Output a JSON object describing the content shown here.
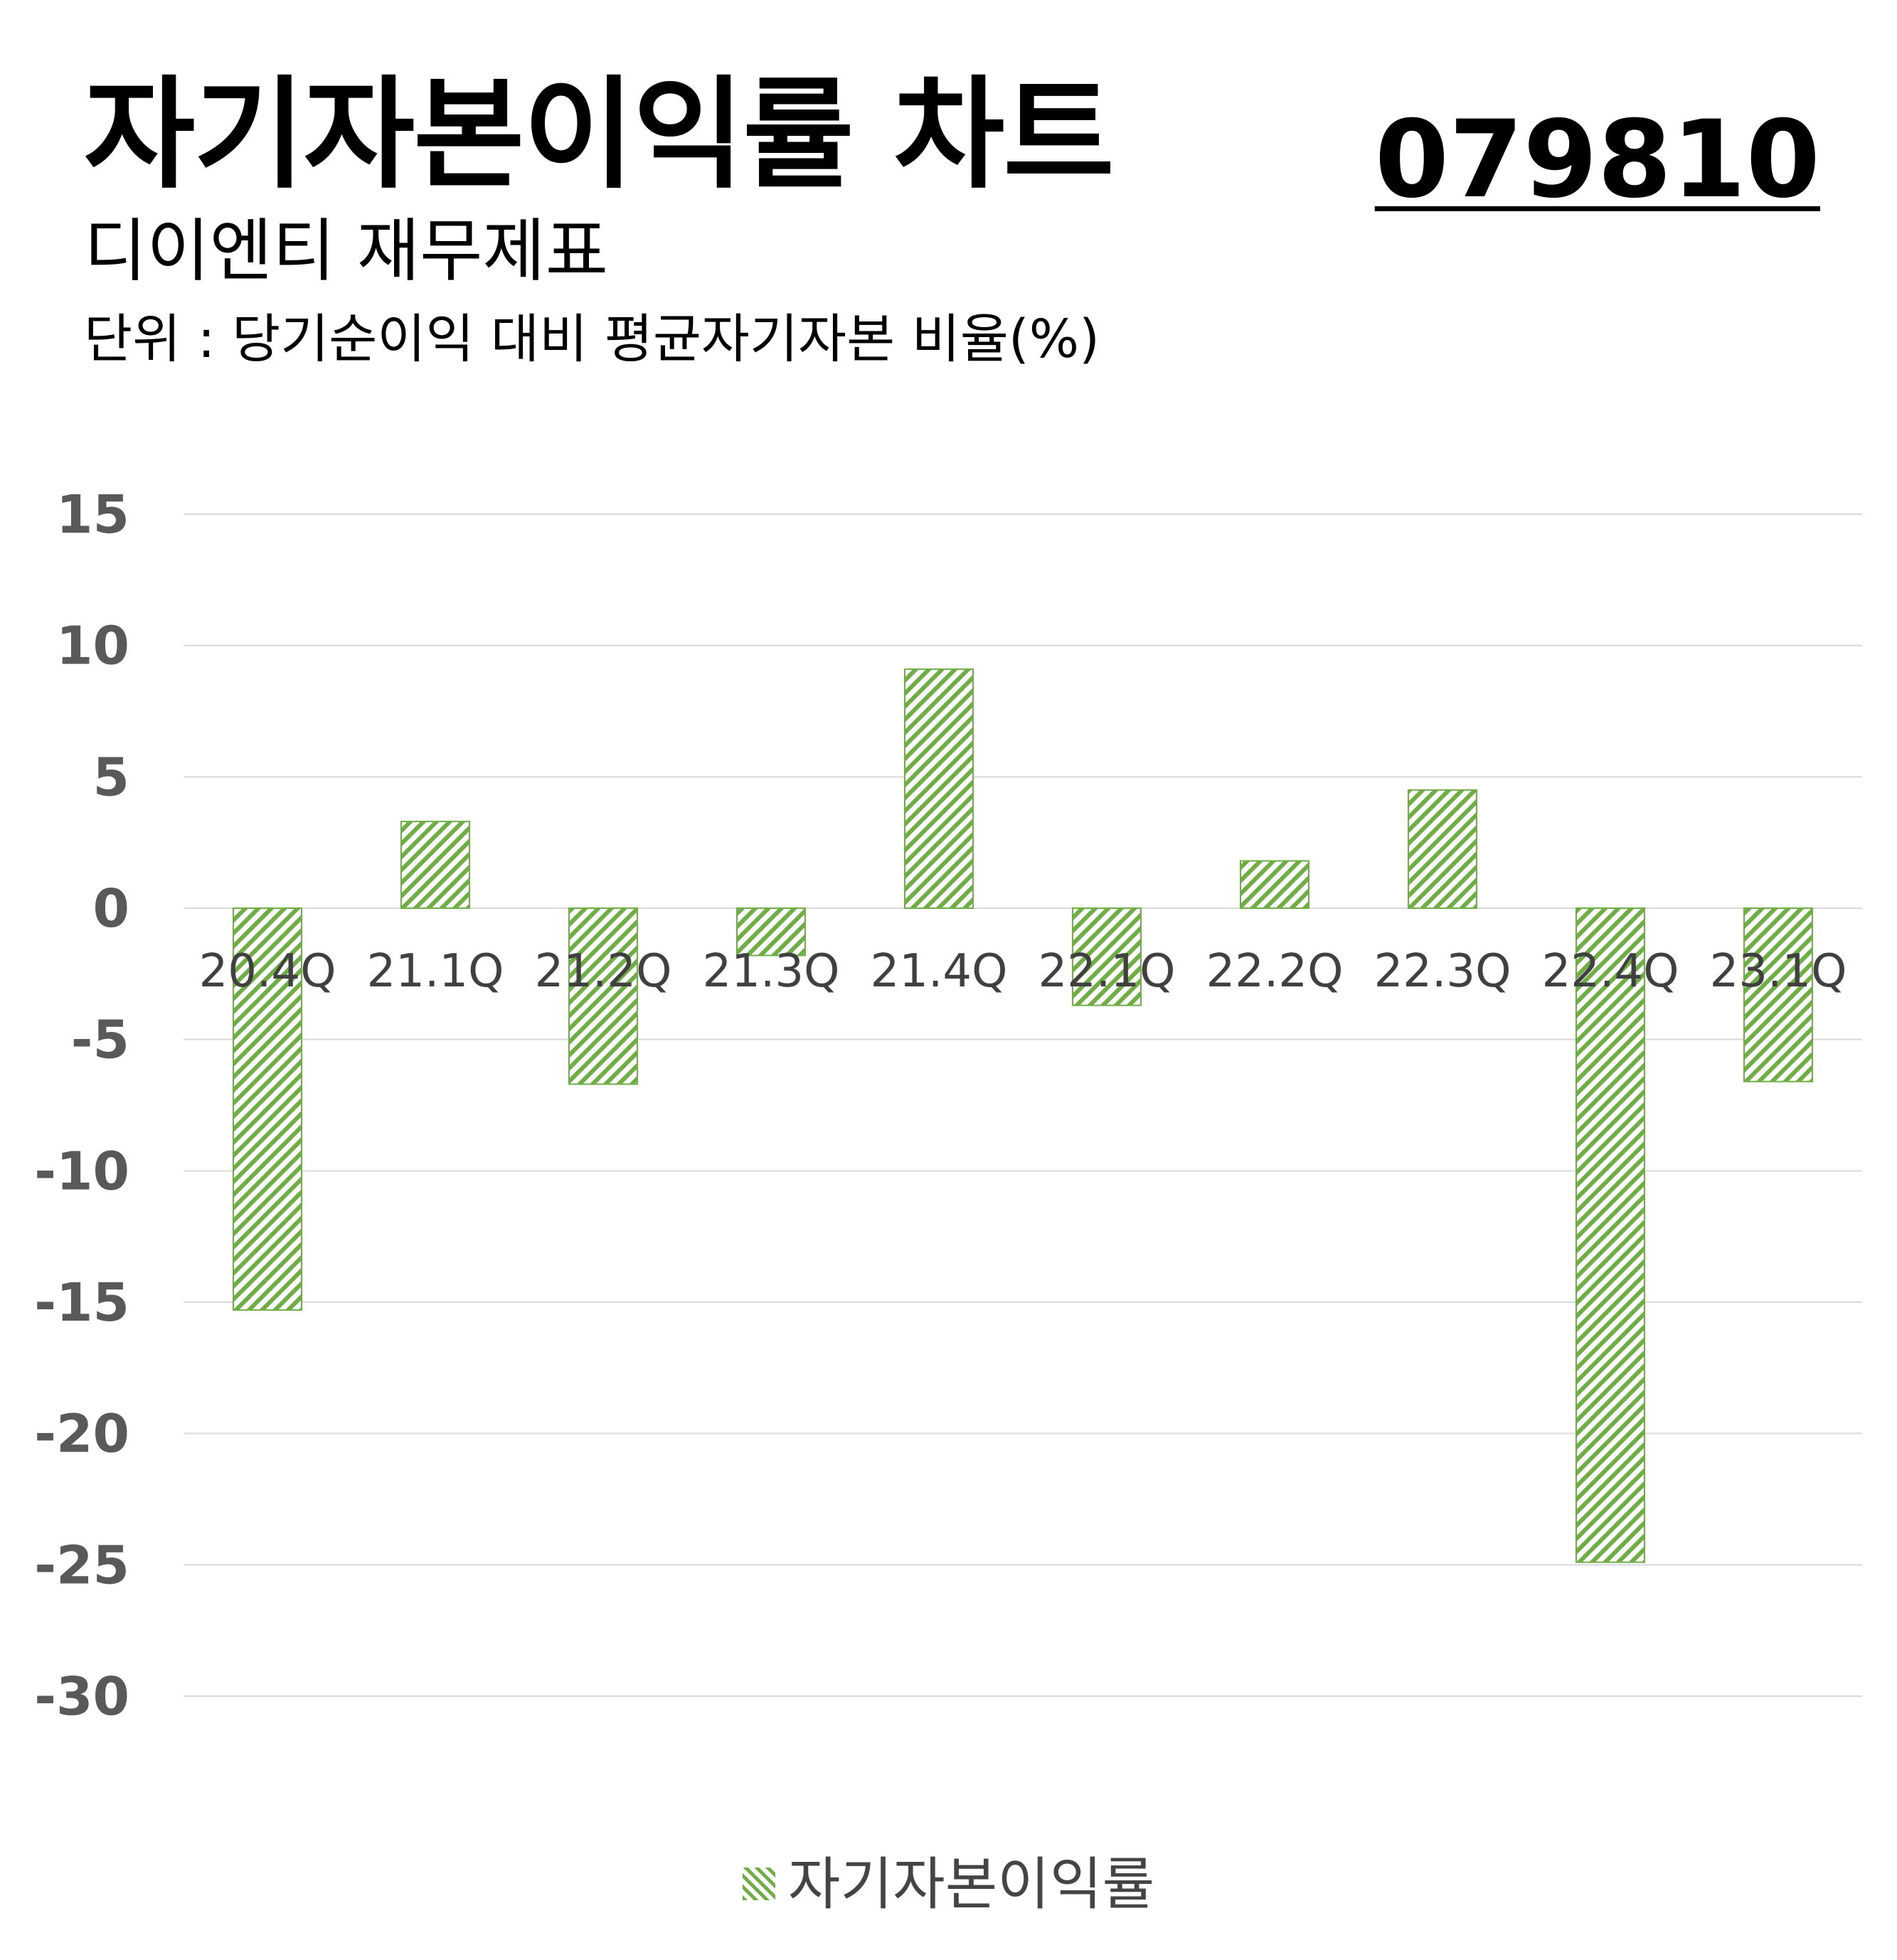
{
  "header": {
    "title": "자기자본이익률 차트",
    "code": "079810",
    "subtitle": "디이엔티 재무제표",
    "unit": "단위 : 당기순이익 대비 평균자기자본 비율(%)"
  },
  "colors": {
    "bar": "#70ad47",
    "grid": "#d9d9d9",
    "axis_text": "#595959",
    "cat_text": "#404040"
  },
  "chart_data": {
    "type": "bar",
    "categories": [
      "20.4Q",
      "21.1Q",
      "21.2Q",
      "21.3Q",
      "21.4Q",
      "22.1Q",
      "22.2Q",
      "22.3Q",
      "22.4Q",
      "23.1Q"
    ],
    "series": [
      {
        "name": "자기자본이익률",
        "values": [
          -15.3,
          3.3,
          -6.7,
          -1.8,
          9.1,
          -3.7,
          1.8,
          4.5,
          -24.9,
          -6.6
        ]
      }
    ],
    "yticks": [
      15,
      10,
      5,
      0,
      -5,
      -10,
      -15,
      -20,
      -25,
      -30
    ],
    "ylim": [
      -30,
      15
    ],
    "grid": true,
    "legend_position": "bottom"
  }
}
